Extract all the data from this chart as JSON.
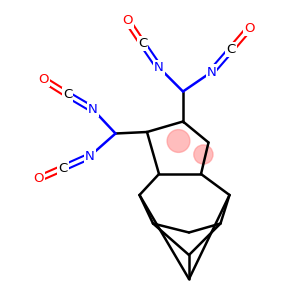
{
  "background_color": "#ffffff",
  "bond_color": "#000000",
  "nitrogen_color": "#0000ff",
  "oxygen_color": "#ff0000",
  "carbon_color": "#000000",
  "highlight_color": "#ff8888",
  "highlight_alpha": 0.55,
  "fig_width": 3.0,
  "fig_height": 3.0,
  "dpi": 100,
  "xlim": [
    0,
    10
  ],
  "ylim": [
    0,
    10
  ]
}
